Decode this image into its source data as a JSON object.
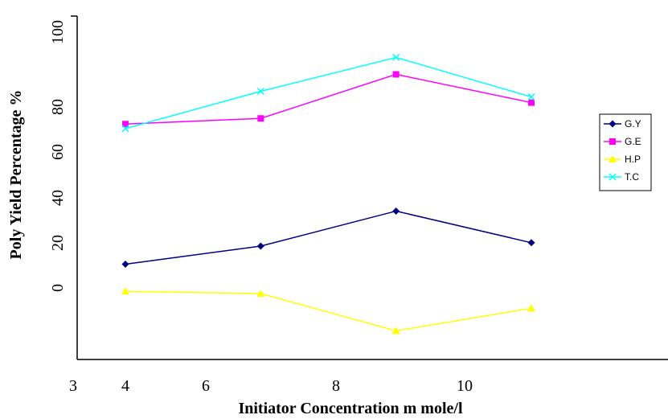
{
  "chart_data": {
    "type": "line",
    "title": "",
    "xlabel": "Initiator Concentration  m mole/l",
    "ylabel": "Poly Yield Percentage %",
    "x_tick_labels": [
      "3",
      "4",
      "6",
      "8",
      "10"
    ],
    "y_tick_labels": [
      "0",
      "20",
      "40",
      "60",
      "80",
      "100"
    ],
    "ylim": [
      -20,
      100
    ],
    "grid": false,
    "legend_position": "right",
    "x": [
      4,
      6.4,
      8.8,
      11.2
    ],
    "series": [
      {
        "name": "G.Y",
        "color": "#000080",
        "marker": "diamond",
        "values": [
          10.5,
          18.5,
          34,
          20
        ]
      },
      {
        "name": "G.E",
        "color": "#ff00ff",
        "marker": "square",
        "values": [
          72.5,
          75,
          94.5,
          82
        ]
      },
      {
        "name": "H.P",
        "color": "#ffff00",
        "marker": "triangle",
        "values": [
          -1.5,
          -2.5,
          -19,
          -9
        ]
      },
      {
        "name": "T.C",
        "color": "#00ffff",
        "marker": "x",
        "values": [
          70.5,
          87,
          102,
          84.5
        ]
      }
    ]
  }
}
